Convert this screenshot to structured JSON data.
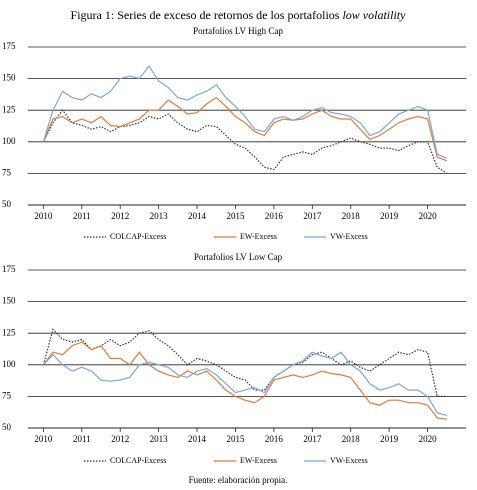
{
  "figure_title": {
    "text": "Figura 1: Series de exceso de retornos de los portafolios ",
    "emphasis": "low volatility"
  },
  "source": "Fuente: elaboración propia.",
  "chart_data": [
    {
      "type": "line",
      "title": "Portafolios LV High Cap",
      "x": [
        2010,
        2010.25,
        2010.5,
        2010.75,
        2011,
        2011.25,
        2011.5,
        2011.75,
        2012,
        2012.25,
        2012.5,
        2012.75,
        2013,
        2013.25,
        2013.5,
        2013.75,
        2014,
        2014.25,
        2014.5,
        2014.75,
        2015,
        2015.25,
        2015.5,
        2015.75,
        2016,
        2016.25,
        2016.5,
        2016.75,
        2017,
        2017.25,
        2017.5,
        2017.75,
        2018,
        2018.25,
        2018.5,
        2018.75,
        2019,
        2019.25,
        2019.5,
        2019.75,
        2020,
        2020.25,
        2020.5
      ],
      "xlim": [
        2009.6,
        2021.0
      ],
      "xticks": [
        2010,
        2011,
        2012,
        2013,
        2014,
        2015,
        2016,
        2017,
        2018,
        2019,
        2020
      ],
      "ylim": [
        50,
        175
      ],
      "yticks": [
        50,
        75,
        100,
        125,
        150,
        175
      ],
      "grid": true,
      "series": [
        {
          "name": "COLCAP-Excess",
          "color": "#333333",
          "dash": "dotted",
          "values": [
            100,
            115,
            125,
            115,
            113,
            110,
            112,
            108,
            112,
            113,
            115,
            120,
            118,
            122,
            115,
            110,
            108,
            113,
            112,
            105,
            98,
            95,
            88,
            80,
            78,
            88,
            90,
            92,
            90,
            95,
            97,
            100,
            103,
            100,
            98,
            95,
            95,
            93,
            97,
            100,
            100,
            80,
            75
          ]
        },
        {
          "name": "EW-Excess",
          "color": "#e07b39",
          "dash": "solid",
          "values": [
            100,
            118,
            120,
            115,
            118,
            115,
            120,
            113,
            112,
            115,
            118,
            125,
            125,
            133,
            128,
            122,
            123,
            130,
            135,
            128,
            120,
            115,
            108,
            105,
            115,
            118,
            117,
            118,
            122,
            125,
            120,
            118,
            118,
            110,
            102,
            105,
            110,
            115,
            118,
            120,
            118,
            88,
            85
          ]
        },
        {
          "name": "VW-Excess",
          "color": "#7ba7d4",
          "dash": "solid",
          "values": [
            100,
            125,
            140,
            135,
            133,
            138,
            135,
            140,
            150,
            152,
            150,
            160,
            148,
            143,
            135,
            133,
            137,
            140,
            145,
            135,
            128,
            120,
            110,
            108,
            118,
            120,
            117,
            120,
            125,
            127,
            123,
            122,
            120,
            115,
            105,
            108,
            115,
            122,
            125,
            128,
            125,
            90,
            87
          ]
        }
      ]
    },
    {
      "type": "line",
      "title": "Portafolios LV Low Cap",
      "x": [
        2010,
        2010.25,
        2010.5,
        2010.75,
        2011,
        2011.25,
        2011.5,
        2011.75,
        2012,
        2012.25,
        2012.5,
        2012.75,
        2013,
        2013.25,
        2013.5,
        2013.75,
        2014,
        2014.25,
        2014.5,
        2014.75,
        2015,
        2015.25,
        2015.5,
        2015.75,
        2016,
        2016.25,
        2016.5,
        2016.75,
        2017,
        2017.25,
        2017.5,
        2017.75,
        2018,
        2018.25,
        2018.5,
        2018.75,
        2019,
        2019.25,
        2019.5,
        2019.75,
        2020,
        2020.25,
        2020.5
      ],
      "xlim": [
        2009.6,
        2021.0
      ],
      "xticks": [
        2010,
        2011,
        2012,
        2013,
        2014,
        2015,
        2016,
        2017,
        2018,
        2019,
        2020
      ],
      "ylim": [
        50,
        175
      ],
      "yticks": [
        50,
        75,
        100,
        125,
        150,
        175
      ],
      "grid": true,
      "series": [
        {
          "name": "COLCAP-Excess",
          "color": "#333333",
          "dash": "dotted",
          "values": [
            100,
            128,
            120,
            118,
            120,
            112,
            115,
            120,
            115,
            118,
            125,
            127,
            120,
            115,
            108,
            100,
            105,
            103,
            100,
            95,
            90,
            88,
            80,
            80,
            90,
            95,
            100,
            102,
            108,
            110,
            105,
            100,
            103,
            98,
            95,
            100,
            105,
            110,
            108,
            112,
            110,
            75,
            75
          ]
        },
        {
          "name": "EW-Excess",
          "color": "#e07b39",
          "dash": "solid",
          "values": [
            100,
            110,
            108,
            115,
            118,
            112,
            115,
            105,
            105,
            100,
            110,
            100,
            95,
            92,
            90,
            95,
            92,
            95,
            88,
            80,
            75,
            72,
            70,
            75,
            88,
            90,
            92,
            90,
            92,
            95,
            93,
            92,
            90,
            80,
            70,
            68,
            72,
            72,
            70,
            70,
            68,
            58,
            57
          ]
        },
        {
          "name": "VW-Excess",
          "color": "#7ba7d4",
          "dash": "solid",
          "values": [
            100,
            108,
            100,
            95,
            98,
            95,
            88,
            87,
            88,
            90,
            100,
            102,
            100,
            98,
            92,
            90,
            95,
            97,
            92,
            85,
            78,
            80,
            82,
            78,
            90,
            95,
            100,
            103,
            110,
            107,
            105,
            110,
            100,
            95,
            85,
            80,
            82,
            85,
            80,
            80,
            75,
            62,
            60
          ]
        }
      ]
    }
  ]
}
